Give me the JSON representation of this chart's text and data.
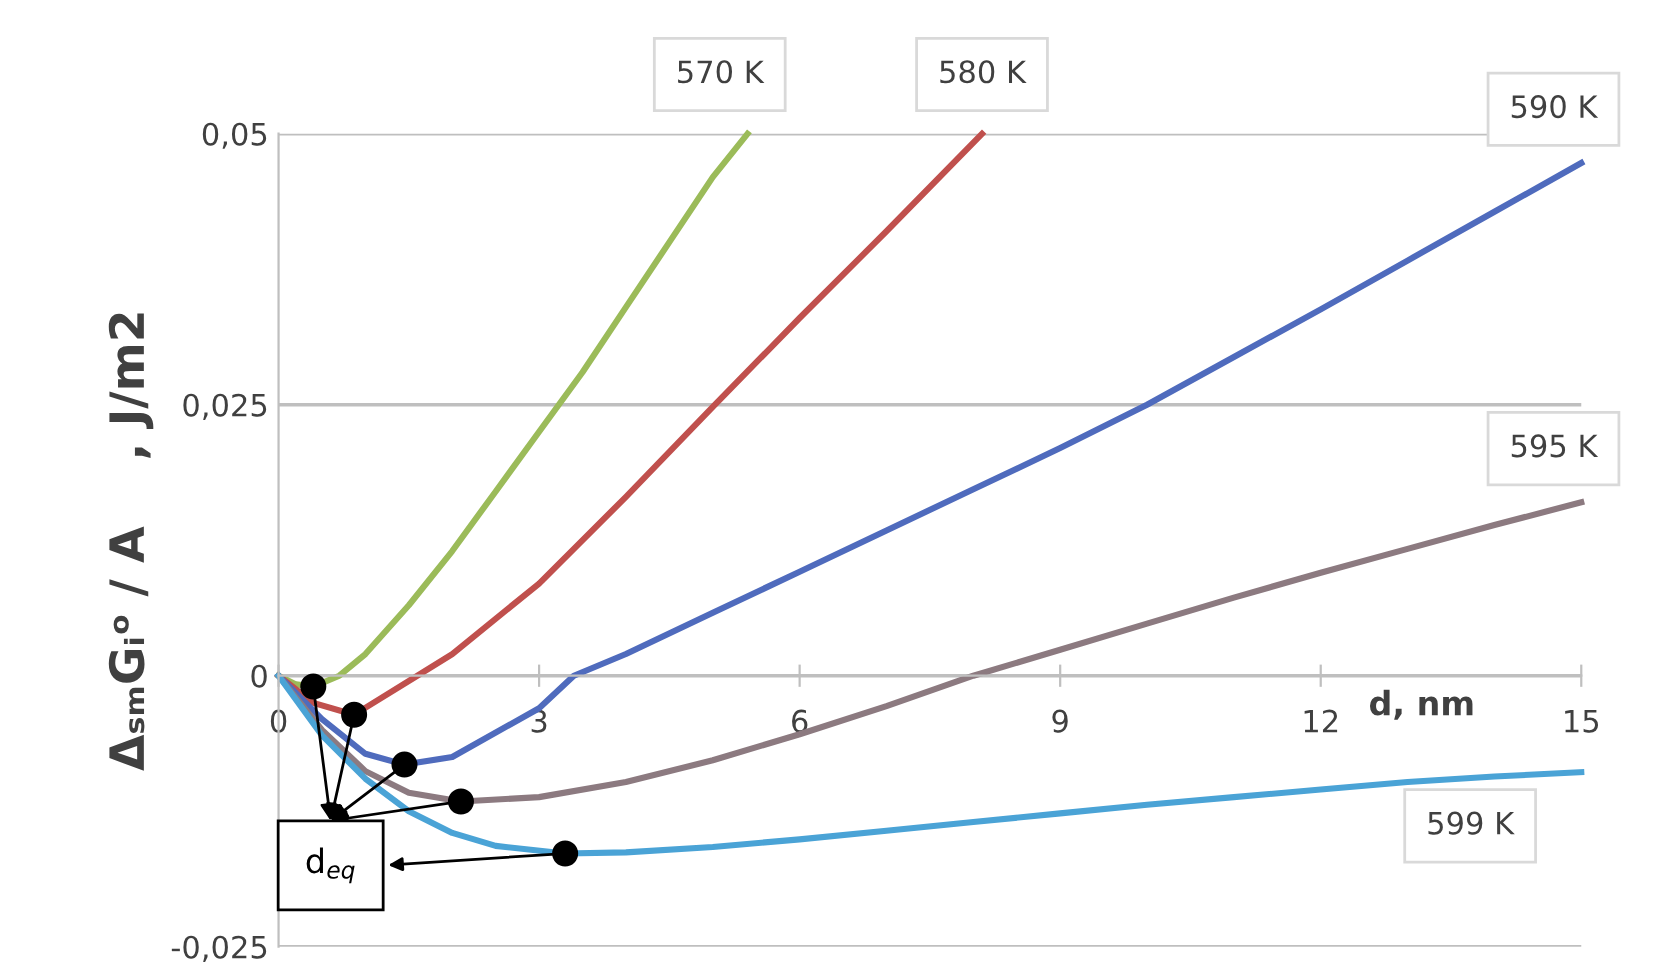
{
  "chart_data": {
    "type": "line",
    "ylabel": "ΔₛₘGᵢᵒ / A    , J/m2",
    "xlabel": "d, nm",
    "xlim": [
      0,
      15
    ],
    "xticks": [
      0,
      3,
      6,
      9,
      12,
      15
    ],
    "ylim": [
      -0.025,
      0.05
    ],
    "yticks": [
      {
        "value": -0.025,
        "label": "-0,025"
      },
      0,
      {
        "value": 0.025,
        "label": "0,025"
      },
      {
        "value": 0.05,
        "label": "0,05"
      }
    ],
    "grid": "y",
    "marker": "none",
    "line_style": "solid",
    "series": [
      {
        "name": "570 K",
        "color": "#9bbb59",
        "x": [
          0,
          0.2,
          0.4,
          0.7,
          1,
          1.5,
          2,
          2.5,
          3,
          3.5,
          4,
          4.5,
          5,
          5.4
        ],
        "values": [
          0,
          -0.0008,
          -0.001,
          0,
          0.002,
          0.0065,
          0.0115,
          0.017,
          0.0225,
          0.028,
          0.034,
          0.04,
          0.046,
          0.05
        ]
      },
      {
        "name": "580 K",
        "color": "#c0504d",
        "x": [
          0,
          0.4,
          0.87,
          1.6,
          2,
          3,
          4,
          5,
          6,
          7,
          8.1
        ],
        "values": [
          0,
          -0.0025,
          -0.0036,
          0,
          0.002,
          0.0085,
          0.0165,
          0.0248,
          0.033,
          0.041,
          0.05
        ]
      },
      {
        "name": "590 K",
        "color": "#4f6bbd",
        "x": [
          0,
          0.5,
          1,
          1.45,
          2,
          3,
          3.4,
          4,
          5,
          6,
          7,
          8,
          9,
          10,
          11,
          12,
          13,
          14,
          15
        ],
        "values": [
          0,
          -0.004,
          -0.0072,
          -0.0082,
          -0.0075,
          -0.003,
          0,
          0.002,
          0.0058,
          0.0096,
          0.0134,
          0.0172,
          0.021,
          0.025,
          0.0294,
          0.0338,
          0.0383,
          0.0428,
          0.0473
        ]
      },
      {
        "name": "595 K",
        "color": "#8c7a80",
        "x": [
          0,
          0.5,
          1,
          1.5,
          2.1,
          3,
          4,
          5,
          6,
          7,
          8,
          9,
          10,
          11,
          12,
          13,
          14,
          15
        ],
        "values": [
          0,
          -0.005,
          -0.0088,
          -0.0108,
          -0.0116,
          -0.0112,
          -0.0098,
          -0.0078,
          -0.0054,
          -0.0028,
          0,
          0.0024,
          0.0048,
          0.0072,
          0.0095,
          0.0117,
          0.0139,
          0.016
        ]
      },
      {
        "name": "599 K",
        "color": "#4aa3d6",
        "x": [
          0,
          0.5,
          1,
          1.5,
          2,
          2.5,
          3.3,
          4,
          5,
          6,
          7,
          8,
          9,
          10,
          11,
          12,
          13,
          14,
          15
        ],
        "values": [
          0,
          -0.0055,
          -0.0095,
          -0.0125,
          -0.0145,
          -0.0157,
          -0.0164,
          -0.0163,
          -0.0158,
          -0.0151,
          -0.0143,
          -0.0135,
          -0.0127,
          -0.0119,
          -0.0112,
          -0.0105,
          -0.0098,
          -0.0093,
          -0.0089
        ]
      },
      {
        "type": "scatter",
        "color": "#000000",
        "marker": "circle",
        "x": [
          0.4,
          0.87,
          1.45,
          2.1,
          3.3
        ],
        "values": [
          -0.001,
          -0.0036,
          -0.0082,
          -0.0116,
          -0.0164
        ]
      }
    ],
    "annotations": [
      {
        "text": "d$_{eq}$",
        "x": 3.3,
        "y": -0.0164
      }
    ]
  }
}
